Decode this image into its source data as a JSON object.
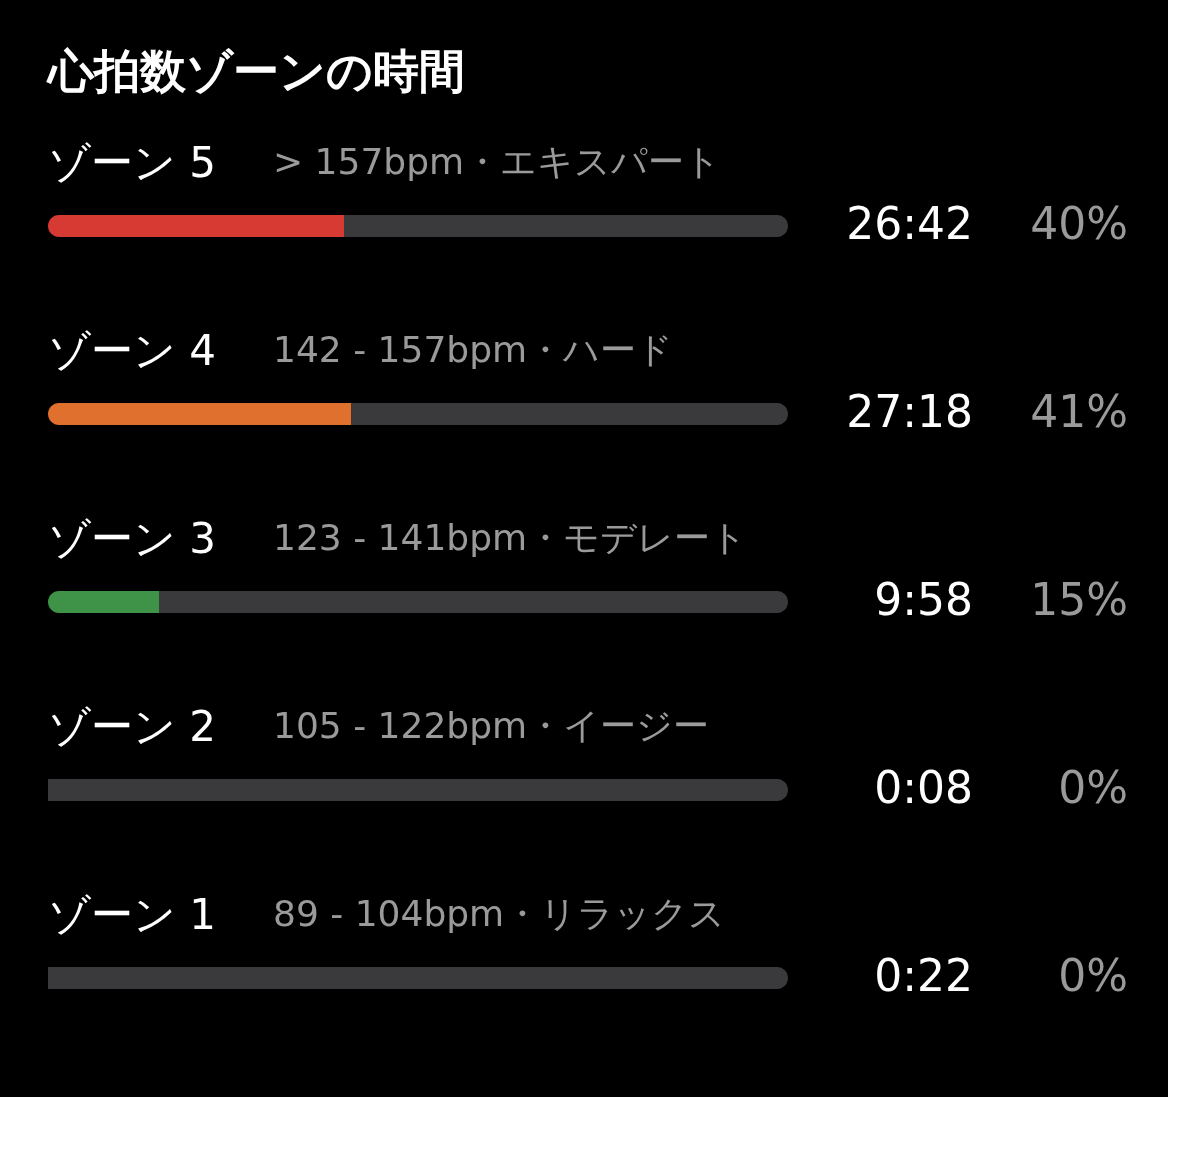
{
  "chart_data": {
    "type": "bar",
    "orientation": "horizontal",
    "stacked": true,
    "title": "心拍数ゾーンの時間",
    "categories": [
      "ゾーン 5",
      "ゾーン 4",
      "ゾーン 3",
      "ゾーン 2",
      "ゾーン 1"
    ],
    "series": [
      {
        "colors": [
          "#d63a33",
          "#e0702e",
          "#3e9348",
          "#3a3a3c",
          "#3a3a3c"
        ],
        "values": [
          40,
          41,
          15,
          0,
          0
        ],
        "value_labels": [
          "40%",
          "41%",
          "15%",
          "0%",
          "0%"
        ]
      },
      {
        "color": "#3a3a3c",
        "values": [
          60,
          59,
          85,
          100,
          100
        ]
      }
    ],
    "xlim": [
      0,
      100
    ],
    "tick_labels": false,
    "annotations": [
      "> 157bpm・エキスパート",
      "142 - 157bpm・ハード",
      "123 - 141bpm・モデレート",
      "105 - 122bpm・イージー",
      "89 - 104bpm・リラックス",
      "26:42",
      "27:18",
      "9:58",
      "0:08",
      "0:22"
    ]
  }
}
